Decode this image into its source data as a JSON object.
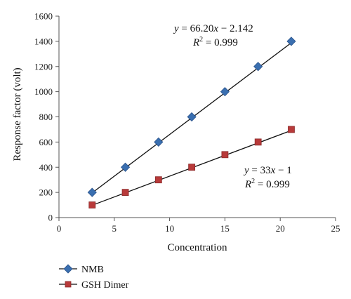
{
  "chart_data": {
    "type": "scatter",
    "xlabel": "Concentration",
    "ylabel": "Response factor (volt)",
    "xlim": [
      0,
      25
    ],
    "ylim": [
      0,
      1600
    ],
    "xticks": [
      0,
      5,
      10,
      15,
      20,
      25
    ],
    "yticks": [
      0,
      200,
      400,
      600,
      800,
      1000,
      1200,
      1400,
      1600
    ],
    "grid": false,
    "legend_position": "bottom-left",
    "series": [
      {
        "name": "NMB",
        "marker": "diamond",
        "color": "#3a6fb0",
        "x": [
          3,
          6,
          9,
          12,
          15,
          18,
          21
        ],
        "y": [
          200,
          400,
          600,
          800,
          1000,
          1200,
          1400
        ],
        "trendline": {
          "slope": 66.2,
          "intercept": -2.142
        },
        "equation": "y = 66.20x − 2.142",
        "r2": "R2 = 0.999"
      },
      {
        "name": "GSH Dimer",
        "marker": "square",
        "color": "#b83a3a",
        "x": [
          3,
          6,
          9,
          12,
          15,
          18,
          21
        ],
        "y": [
          100,
          200,
          300,
          400,
          500,
          600,
          700
        ],
        "trendline": {
          "slope": 33,
          "intercept": -1
        },
        "equation": "y = 33x − 1",
        "r2": "R2 = 0.999"
      }
    ]
  }
}
